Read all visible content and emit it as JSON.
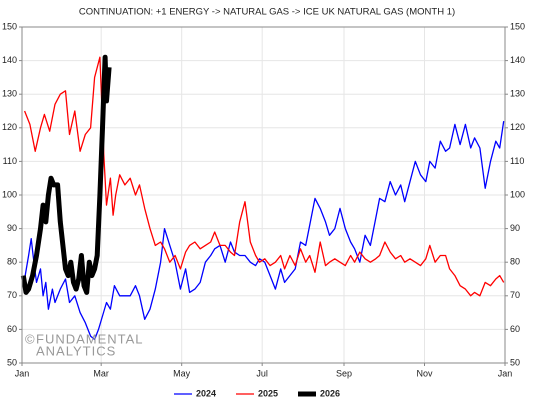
{
  "chart_data": {
    "type": "line",
    "title": "CONTINUATION: +1 ENERGY -> NATURAL GAS -> ICE UK NATURAL GAS (MONTH 1)",
    "watermark_symbol": "©",
    "watermark": [
      "FUNDAMENTAL",
      "ANALYTICS"
    ],
    "xlim": [
      0,
      366
    ],
    "xticks": [
      {
        "value": 0,
        "label": "Jan"
      },
      {
        "value": 60,
        "label": "Mar"
      },
      {
        "value": 121,
        "label": "May"
      },
      {
        "value": 182,
        "label": "Jul"
      },
      {
        "value": 244,
        "label": "Sep"
      },
      {
        "value": 305,
        "label": "Nov"
      },
      {
        "value": 366,
        "label": "Jan"
      }
    ],
    "ylim": [
      50,
      150
    ],
    "yticks": [
      50,
      60,
      70,
      80,
      90,
      100,
      110,
      120,
      130,
      140,
      150
    ],
    "grid": true,
    "legend": "bottom",
    "series": [
      {
        "name": "2024",
        "color": "#0000ff",
        "width": 1.3,
        "x": [
          2,
          5,
          7,
          9,
          11,
          14,
          16,
          18,
          20,
          23,
          25,
          29,
          33,
          36,
          40,
          44,
          48,
          52,
          55,
          58,
          61,
          64,
          67,
          70,
          74,
          78,
          82,
          86,
          89,
          93,
          97,
          101,
          105,
          108,
          112,
          116,
          120,
          124,
          127,
          131,
          135,
          139,
          143,
          146,
          150,
          154,
          158,
          161,
          165,
          169,
          173,
          177,
          180,
          184,
          188,
          192,
          196,
          199,
          203,
          207,
          211,
          215,
          218,
          222,
          226,
          230,
          233,
          237,
          241,
          245,
          249,
          252,
          256,
          260,
          264,
          268,
          271,
          275,
          279,
          283,
          287,
          290,
          294,
          298,
          302,
          306,
          309,
          313,
          317,
          321,
          324,
          328,
          332,
          336,
          340,
          343,
          347,
          351,
          355,
          359,
          362,
          365
        ],
        "values": [
          75,
          82,
          87,
          80,
          74,
          78,
          70,
          74,
          66,
          72,
          68,
          72,
          75,
          68,
          70,
          65,
          62,
          58,
          57,
          60,
          64,
          68,
          66,
          73,
          70,
          70,
          70,
          73,
          70,
          63,
          66,
          72,
          80,
          90,
          85,
          80,
          72,
          78,
          71,
          72,
          74,
          80,
          82,
          84,
          85,
          80,
          86,
          83,
          82,
          82,
          80,
          79,
          81,
          80,
          76,
          72,
          78,
          74,
          76,
          78,
          86,
          85,
          91,
          99,
          96,
          92,
          88,
          90,
          96,
          90,
          86,
          84,
          80,
          88,
          85,
          93,
          99,
          98,
          104,
          100,
          103,
          98,
          104,
          110,
          106,
          104,
          110,
          108,
          116,
          113,
          114,
          121,
          115,
          121,
          114,
          117,
          114,
          102,
          110,
          116,
          114,
          122
        ]
      },
      {
        "name": "2025",
        "color": "#ff0000",
        "width": 1.3,
        "x": [
          2,
          6,
          10,
          14,
          17,
          21,
          25,
          29,
          33,
          36,
          40,
          44,
          48,
          52,
          55,
          59,
          62,
          64,
          67,
          69,
          71,
          74,
          78,
          82,
          86,
          89,
          93,
          97,
          101,
          105,
          108,
          112,
          116,
          120,
          124,
          127,
          131,
          135,
          139,
          143,
          146,
          150,
          154,
          158,
          161,
          165,
          169,
          173,
          177,
          180,
          184,
          188,
          192,
          196,
          199,
          203,
          207,
          211,
          215,
          218,
          222,
          226,
          230,
          233,
          237,
          241,
          245,
          249,
          252,
          256,
          260,
          264,
          268,
          271,
          275,
          279,
          283,
          287,
          290,
          294,
          298,
          302,
          306,
          309,
          313,
          317,
          321,
          324,
          328,
          332,
          336,
          340,
          343,
          347,
          351,
          355,
          359,
          362,
          365
        ],
        "values": [
          125,
          121,
          113,
          120,
          124,
          119,
          127,
          130,
          131,
          118,
          125,
          113,
          118,
          120,
          135,
          141,
          112,
          97,
          105,
          94,
          100,
          106,
          103,
          105,
          100,
          103,
          96,
          90,
          85,
          86,
          84,
          80,
          82,
          78,
          83,
          85,
          86,
          84,
          85,
          86,
          89,
          85,
          85,
          83,
          82,
          92,
          98,
          86,
          82,
          80,
          81,
          79,
          80,
          82,
          78,
          82,
          79,
          84,
          80,
          82,
          77,
          86,
          79,
          80,
          81,
          80,
          79,
          82,
          80,
          83,
          81,
          80,
          81,
          82,
          86,
          83,
          81,
          82,
          80,
          81,
          80,
          79,
          81,
          85,
          80,
          82,
          82,
          78,
          76,
          73,
          72,
          70,
          71,
          70,
          74,
          73,
          75,
          76,
          74
        ]
      },
      {
        "name": "2026",
        "color": "#000000",
        "width": 5,
        "x": [
          1,
          3,
          5,
          8,
          11,
          14,
          16,
          18,
          20,
          22,
          24,
          27,
          29,
          31,
          33,
          35,
          37,
          39,
          41,
          43,
          45,
          47,
          49,
          51,
          53,
          55,
          57,
          59,
          61,
          63,
          64,
          66
        ],
        "values": [
          76,
          71,
          72,
          76,
          82,
          90,
          97,
          92,
          100,
          105,
          103,
          103,
          92,
          85,
          78,
          76,
          80,
          74,
          72,
          75,
          82,
          73,
          71,
          80,
          76,
          78,
          82,
          100,
          120,
          141,
          128,
          138
        ]
      }
    ]
  }
}
